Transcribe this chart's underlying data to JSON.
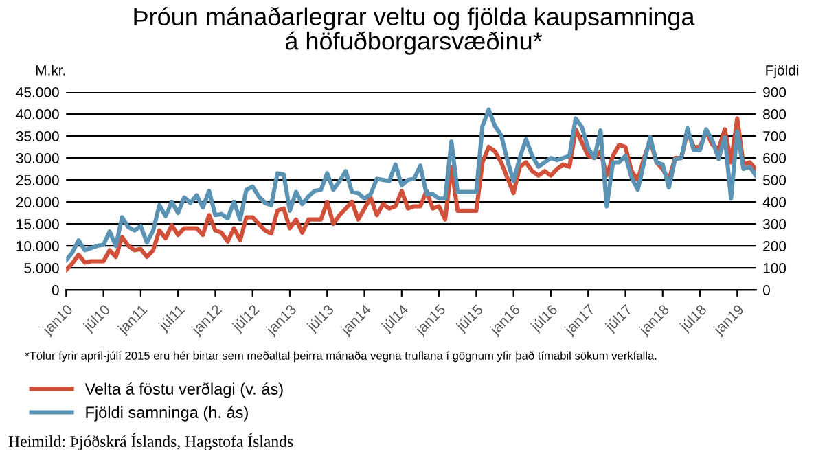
{
  "chart_data": {
    "type": "line",
    "title": "Þróun mánaðarlegrar veltu og fjölda kaupsamninga\ná höfuðborgarsvæðinu*",
    "ylabel": "M.kr.",
    "y2label": "Fjöldi",
    "categories": [
      "jan10",
      null,
      null,
      null,
      null,
      null,
      "júl10",
      null,
      null,
      null,
      null,
      null,
      "jan11",
      null,
      null,
      null,
      null,
      null,
      "júl11",
      null,
      null,
      null,
      null,
      null,
      "jan12",
      null,
      null,
      null,
      null,
      null,
      "júl12",
      null,
      null,
      null,
      null,
      null,
      "jan13",
      null,
      null,
      null,
      null,
      null,
      "júl13",
      null,
      null,
      null,
      null,
      null,
      "jan14",
      null,
      null,
      null,
      null,
      null,
      "júl14",
      null,
      null,
      null,
      null,
      null,
      "jan15",
      null,
      null,
      null,
      null,
      null,
      "júl15",
      null,
      null,
      null,
      null,
      null,
      "jan16",
      null,
      null,
      null,
      null,
      null,
      "júl16",
      null,
      null,
      null,
      null,
      null,
      "jan17",
      null,
      null,
      null,
      null,
      null,
      "júl17",
      null,
      null,
      null,
      null,
      null,
      "jan18",
      null,
      null,
      null,
      null,
      null,
      "júl18",
      null,
      null,
      null,
      null,
      null,
      "jan19",
      null,
      null,
      null
    ],
    "series": [
      {
        "name": "Velta á föstu verðlagi (v. ás)",
        "color": "#d0503a",
        "values": [
          4500,
          6000,
          8000,
          6200,
          6500,
          6500,
          6500,
          9000,
          7500,
          12000,
          10000,
          9000,
          9300,
          7500,
          9000,
          13500,
          11700,
          14700,
          12500,
          14000,
          14000,
          14000,
          12500,
          17000,
          13500,
          13000,
          11000,
          14000,
          11300,
          16500,
          16500,
          15000,
          13500,
          12800,
          18000,
          18500,
          14000,
          16000,
          13000,
          16000,
          16000,
          16000,
          20000,
          15000,
          17000,
          18500,
          20000,
          16000,
          18500,
          21000,
          17000,
          19500,
          18500,
          19000,
          22500,
          18500,
          19000,
          19000,
          22500,
          18500,
          19000,
          16000,
          28000,
          18000,
          18000,
          18000,
          18000,
          29000,
          32500,
          31500,
          29000,
          25500,
          22000,
          28000,
          29000,
          27000,
          26000,
          27000,
          26000,
          27500,
          28500,
          28000,
          36500,
          33500,
          30500,
          30000,
          31500,
          26000,
          30500,
          33000,
          32500,
          27000,
          25000,
          30000,
          34000,
          29000,
          27500,
          25000,
          30000,
          30000,
          36000,
          32500,
          32500,
          36000,
          33000,
          32000,
          36500,
          29000,
          39000,
          28500,
          29000,
          27500
        ]
      },
      {
        "name": "Fjöldi samninga (h. ás)",
        "color": "#5b93b5",
        "axis": "y2",
        "values": [
          135,
          170,
          225,
          180,
          190,
          200,
          205,
          265,
          200,
          330,
          285,
          270,
          290,
          215,
          270,
          385,
          335,
          400,
          350,
          420,
          395,
          430,
          375,
          450,
          340,
          345,
          325,
          400,
          320,
          455,
          470,
          425,
          395,
          385,
          530,
          525,
          360,
          445,
          390,
          425,
          450,
          455,
          530,
          455,
          495,
          540,
          445,
          440,
          415,
          435,
          505,
          500,
          495,
          570,
          475,
          500,
          505,
          565,
          435,
          435,
          415,
          415,
          675,
          445,
          445,
          445,
          445,
          745,
          820,
          745,
          705,
          590,
          495,
          600,
          685,
          610,
          560,
          580,
          600,
          590,
          600,
          610,
          780,
          740,
          645,
          600,
          725,
          380,
          580,
          580,
          610,
          510,
          455,
          580,
          695,
          580,
          570,
          465,
          595,
          600,
          735,
          635,
          635,
          730,
          680,
          595,
          695,
          415,
          720,
          550,
          560,
          520
        ]
      }
    ],
    "ylim": [
      0,
      45000
    ],
    "yticks": [
      {
        "value": 0,
        "label": "0"
      },
      {
        "value": 5000,
        "label": "5.000"
      },
      {
        "value": 10000,
        "label": "10.000"
      },
      {
        "value": 15000,
        "label": "15.000"
      },
      {
        "value": 20000,
        "label": "20.000"
      },
      {
        "value": 25000,
        "label": "25.000"
      },
      {
        "value": 30000,
        "label": "30.000"
      },
      {
        "value": 35000,
        "label": "35.000"
      },
      {
        "value": 40000,
        "label": "40.000"
      },
      {
        "value": 45000,
        "label": "45.000"
      }
    ],
    "y2lim": [
      0,
      900
    ],
    "y2ticks": [
      0,
      100,
      200,
      300,
      400,
      500,
      600,
      700,
      800,
      900
    ],
    "grid": "y",
    "legend": "bottom left",
    "marker": "none",
    "line_style": "solid",
    "annotations": [
      "*Tölur fyrir apríl-júlí 2015 eru hér birtar sem meðaltal þeirra mánaða vegna truflana í gögnum yfir það tímabil sökum verkfalla.",
      "Heimild: Þjóðskrá Íslands, Hagstofa Íslands"
    ]
  }
}
